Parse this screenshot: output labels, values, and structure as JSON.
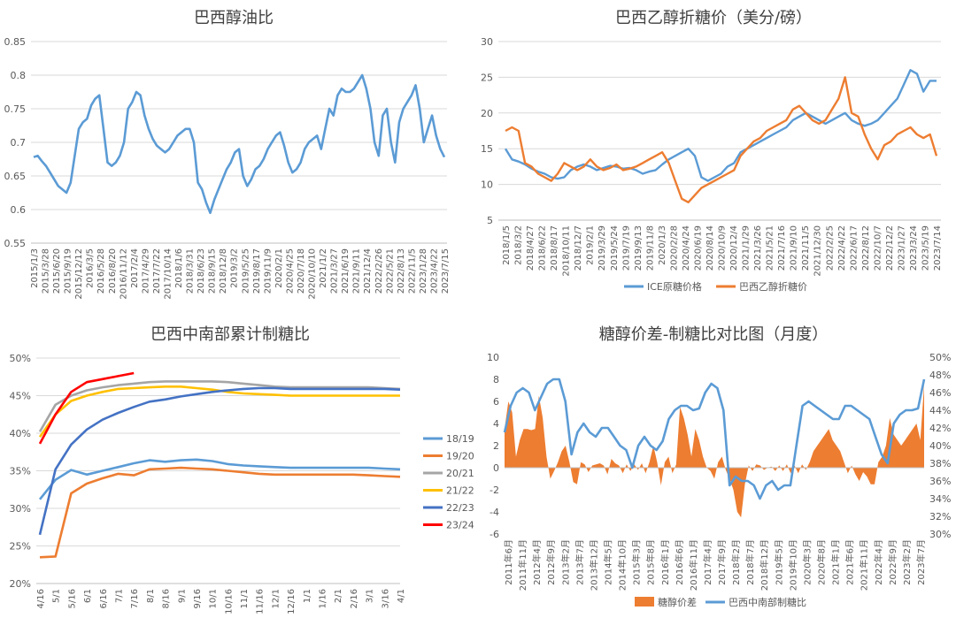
{
  "chart_data": [
    {
      "type": "line",
      "title": "巴西醇油比",
      "ylim": [
        0.55,
        0.85
      ],
      "yticks": [
        "0.55",
        "0.6",
        "0.65",
        "0.7",
        "0.75",
        "0.8",
        "0.85"
      ],
      "xticks": [
        "2015/1/3",
        "2015/3/28",
        "2015/6/20",
        "2015/9/19",
        "2015/12/12",
        "2016/3/5",
        "2016/5/28",
        "2016/8/20",
        "2016/11/12",
        "2017/2/4",
        "2017/4/29",
        "2017/7/22",
        "2017/10/14",
        "2018/1/6",
        "2018/3/31",
        "2018/6/23",
        "2018/9/15",
        "2018/12/8",
        "2019/3/2",
        "2019/5/25",
        "2019/8/17",
        "2019/11/9",
        "2020/2/1",
        "2020/4/25",
        "2020/7/18",
        "2020/10/10",
        "2021/1/2",
        "2021/3/27",
        "2021/6/19",
        "2021/9/11",
        "2021/12/4",
        "2022/2/26",
        "2022/5/21",
        "2022/8/13",
        "2022/11/5",
        "2023/1/28",
        "2023/4/22",
        "2023/7/15"
      ],
      "color": "#5b9bd5",
      "series": [
        {
          "values": [
            0.678,
            0.68,
            0.672,
            0.665,
            0.655,
            0.645,
            0.635,
            0.63,
            0.625,
            0.64,
            0.68,
            0.72,
            0.73,
            0.735,
            0.755,
            0.765,
            0.77,
            0.72,
            0.67,
            0.665,
            0.67,
            0.68,
            0.7,
            0.75,
            0.76,
            0.775,
            0.77,
            0.74,
            0.72,
            0.705,
            0.695,
            0.69,
            0.685,
            0.69,
            0.7,
            0.71,
            0.715,
            0.72,
            0.72,
            0.7,
            0.64,
            0.63,
            0.61,
            0.595,
            0.615,
            0.63,
            0.645,
            0.66,
            0.67,
            0.685,
            0.69,
            0.65,
            0.635,
            0.645,
            0.66,
            0.665,
            0.675,
            0.69,
            0.7,
            0.71,
            0.715,
            0.695,
            0.67,
            0.655,
            0.66,
            0.67,
            0.69,
            0.7,
            0.705,
            0.71,
            0.69,
            0.72,
            0.75,
            0.74,
            0.77,
            0.78,
            0.775,
            0.775,
            0.78,
            0.79,
            0.8,
            0.78,
            0.75,
            0.7,
            0.68,
            0.74,
            0.75,
            0.7,
            0.67,
            0.73,
            0.75,
            0.76,
            0.77,
            0.785,
            0.75,
            0.7,
            0.72,
            0.74,
            0.71,
            0.69,
            0.678
          ]
        }
      ]
    },
    {
      "type": "line",
      "title": "巴西乙醇折糖价（美分/磅）",
      "ylim": [
        5,
        30
      ],
      "yticks": [
        "5",
        "10",
        "15",
        "20",
        "25",
        "30"
      ],
      "xticks": [
        "2018/1/5",
        "2018/3/2",
        "2018/4/27",
        "2018/6/22",
        "2018/8/17",
        "2018/10/11",
        "2018/12/7",
        "2019/2/1",
        "2019/3/29",
        "2019/5/24",
        "2019/7/19",
        "2019/9/13",
        "2019/11/8",
        "2020/1/3",
        "2020/2/28",
        "2020/4/24",
        "2020/6/19",
        "2020/8/14",
        "2020/10/9",
        "2020/12/4",
        "2021/1/29",
        "2021/3/26",
        "2021/5/21",
        "2021/7/16",
        "2021/9/10",
        "2021/11/5",
        "2021/12/30",
        "2022/2/25",
        "2022/4/22",
        "2022/6/17",
        "2022/8/12",
        "2022/10/7",
        "2022/12/2",
        "2023/1/27",
        "2023/3/24",
        "2023/5/19",
        "2023/7/14"
      ],
      "series": [
        {
          "name": "ICE原糖价格",
          "color": "#5b9bd5",
          "values": [
            15,
            13.5,
            13.2,
            12.8,
            12.2,
            11.8,
            11.5,
            11.0,
            10.8,
            11.0,
            12.0,
            12.5,
            12.8,
            12.5,
            12.0,
            12.3,
            12.6,
            12.5,
            12.2,
            12.3,
            12.0,
            11.5,
            11.8,
            12.0,
            12.8,
            13.5,
            14.0,
            14.5,
            15.0,
            14.0,
            11.0,
            10.5,
            11.0,
            11.5,
            12.5,
            13.0,
            14.5,
            15.0,
            15.5,
            16.0,
            16.5,
            17.0,
            17.5,
            18.0,
            19.0,
            19.5,
            20.0,
            19.5,
            19.0,
            18.5,
            19.0,
            19.5,
            20.0,
            19.0,
            18.5,
            18.2,
            18.5,
            19.0,
            20.0,
            21.0,
            22.0,
            24.0,
            26.0,
            25.5,
            23.0,
            24.5,
            24.5
          ]
        },
        {
          "name": "巴西乙醇折糖价",
          "color": "#ed7d31",
          "values": [
            17.5,
            18.0,
            17.5,
            13.0,
            12.5,
            11.5,
            11.0,
            10.5,
            11.5,
            13.0,
            12.5,
            12.0,
            12.5,
            13.5,
            12.5,
            12.0,
            12.3,
            12.8,
            12.0,
            12.2,
            12.5,
            13.0,
            13.5,
            14.0,
            14.5,
            13.0,
            10.5,
            8.0,
            7.5,
            8.5,
            9.5,
            10.0,
            10.5,
            11.0,
            11.5,
            12.0,
            14.0,
            15.0,
            16.0,
            16.5,
            17.5,
            18.0,
            18.5,
            19.0,
            20.5,
            21.0,
            20.0,
            19.0,
            18.5,
            19.0,
            20.5,
            22.0,
            25.0,
            20.0,
            19.5,
            17.0,
            15.0,
            13.5,
            15.5,
            16.0,
            17.0,
            17.5,
            18.0,
            17.0,
            16.5,
            17.0,
            14.0
          ]
        }
      ]
    },
    {
      "type": "line",
      "title": "巴西中南部累计制糖比",
      "ylim": [
        20,
        50
      ],
      "yticks": [
        "20%",
        "25%",
        "30%",
        "35%",
        "40%",
        "45%",
        "50%"
      ],
      "xticks": [
        "4/16",
        "5/1",
        "5/16",
        "6/1",
        "6/16",
        "7/1",
        "7/16",
        "8/1",
        "8/16",
        "9/1",
        "9/16",
        "10/1",
        "10/16",
        "11/1",
        "11/16",
        "12/1",
        "12/16",
        "1/1",
        "1/16",
        "2/1",
        "2/16",
        "3/1",
        "3/16",
        "4/1"
      ],
      "series": [
        {
          "name": "18/19",
          "color": "#5b9bd5",
          "values": [
            31.2,
            33.8,
            35.1,
            34.5,
            35.0,
            35.5,
            36.0,
            36.4,
            36.2,
            36.4,
            36.5,
            36.3,
            35.9,
            35.7,
            35.6,
            35.5,
            35.4,
            35.4,
            35.4,
            35.4,
            35.4,
            35.4,
            35.3,
            35.2
          ]
        },
        {
          "name": "19/20",
          "color": "#ed7d31",
          "values": [
            23.5,
            23.6,
            32.0,
            33.3,
            34.0,
            34.6,
            34.4,
            35.2,
            35.3,
            35.4,
            35.3,
            35.2,
            35.0,
            34.8,
            34.6,
            34.5,
            34.5,
            34.5,
            34.5,
            34.5,
            34.5,
            34.4,
            34.3,
            34.2
          ]
        },
        {
          "name": "20/21",
          "color": "#a5a5a5",
          "values": [
            40.2,
            43.8,
            45.0,
            45.7,
            46.1,
            46.4,
            46.6,
            46.8,
            46.9,
            46.9,
            46.9,
            46.9,
            46.8,
            46.6,
            46.4,
            46.2,
            46.1,
            46.1,
            46.1,
            46.1,
            46.1,
            46.1,
            46.0,
            45.9
          ]
        },
        {
          "name": "21/22",
          "color": "#ffc000",
          "values": [
            39.5,
            42.5,
            44.3,
            45.0,
            45.5,
            45.9,
            46.0,
            46.1,
            46.2,
            46.2,
            46.0,
            45.8,
            45.5,
            45.3,
            45.2,
            45.1,
            45.0,
            45.0,
            45.0,
            45.0,
            45.0,
            45.0,
            45.0,
            45.0
          ]
        },
        {
          "name": "22/23",
          "color": "#4472c4",
          "values": [
            26.5,
            35.2,
            38.5,
            40.5,
            41.8,
            42.7,
            43.5,
            44.2,
            44.5,
            44.9,
            45.2,
            45.5,
            45.7,
            45.9,
            46.0,
            46.0,
            45.9,
            45.9,
            45.9,
            45.9,
            45.9,
            45.9,
            45.9,
            45.8
          ]
        },
        {
          "name": "23/24",
          "color": "#ff0000",
          "values": [
            38.6,
            42.5,
            45.5,
            46.8,
            47.2,
            47.6,
            48.0
          ]
        }
      ]
    },
    {
      "type": "bar+line",
      "title": "糖醇价差-制糖比对比图（月度）",
      "ylim_left": [
        -6,
        10
      ],
      "ylim_right": [
        30,
        50
      ],
      "yticks_left": [
        "-6",
        "-4",
        "-2",
        "0",
        "2",
        "4",
        "6",
        "8",
        "10"
      ],
      "yticks_right": [
        "30%",
        "32%",
        "34%",
        "36%",
        "38%",
        "40%",
        "42%",
        "44%",
        "46%",
        "48%",
        "50%"
      ],
      "xticks": [
        "2011年6月",
        "2011年11月",
        "2012年4月",
        "2012年9月",
        "2013年2月",
        "2013年7月",
        "2013年12月",
        "2014年5月",
        "2014年10月",
        "2015年3月",
        "2015年8月",
        "2016年1月",
        "2016年6月",
        "2016年11月",
        "2017年4月",
        "2017年9月",
        "2018年2月",
        "2018年7月",
        "2018年12月",
        "2019年5月",
        "2019年10月",
        "2020年3月",
        "2020年8月",
        "2021年1月",
        "2021年6月",
        "2021年11月",
        "2022年4月",
        "2022年9月",
        "2023年2月",
        "2023年7月"
      ],
      "series": [
        {
          "name": "糖醇价差",
          "color": "#ed7d31",
          "axis": "left",
          "values": [
            3.5,
            6.0,
            5.0,
            1.0,
            2.5,
            3.5,
            3.5,
            3.4,
            3.5,
            6.5,
            4.5,
            1.0,
            -1.0,
            -0.3,
            0.5,
            1.5,
            2.0,
            0.5,
            -1.3,
            -1.5,
            0.5,
            0.3,
            -0.4,
            0.2,
            0.3,
            0.4,
            0.2,
            -0.6,
            0.8,
            0.4,
            0.2,
            -0.5,
            0.3,
            -0.3,
            0.3,
            -0.2,
            0.4,
            -0.5,
            0.5,
            2.0,
            0.5,
            -1.6,
            0.5,
            1.0,
            -0.5,
            0.3,
            5.5,
            4.5,
            3.0,
            1.0,
            3.5,
            2.5,
            1.0,
            0.0,
            -0.3,
            -1.0,
            0.5,
            1.0,
            -0.2,
            -1.0,
            -2.0,
            -4.0,
            -4.5,
            -1.5,
            0.2,
            -0.3,
            0.3,
            0.2,
            -0.2,
            0.0,
            0.1,
            -0.3,
            0.2,
            -0.3,
            0.3,
            -0.5,
            0.2,
            -0.5,
            0.3,
            -0.2,
            0.5,
            1.5,
            2.0,
            2.5,
            3.0,
            3.5,
            2.5,
            2.0,
            1.5,
            0.5,
            -0.5,
            0.2,
            -0.6,
            -1.2,
            -0.4,
            -0.8,
            -1.5,
            -1.5,
            0.5,
            1.0,
            2.0,
            4.5,
            3.0,
            2.5,
            2.0,
            2.5,
            3.0,
            3.5,
            4.0,
            2.5,
            7.5
          ]
        },
        {
          "name": "巴西中南部制糖比",
          "color": "#5b9bd5",
          "axis": "right",
          "values": [
            41.5,
            44.5,
            46.0,
            46.5,
            46.0,
            44.0,
            45.5,
            47.0,
            47.5,
            47.5,
            45.0,
            39.0,
            41.5,
            42.5,
            41.5,
            41.0,
            42.0,
            42.0,
            41.0,
            40.0,
            39.5,
            37.5,
            40.0,
            41.0,
            40.0,
            39.5,
            40.5,
            43.0,
            44.0,
            44.5,
            44.5,
            44.0,
            44.2,
            46.0,
            47.0,
            46.5,
            44.0,
            35.5,
            36.5,
            36.0,
            36.0,
            35.5,
            34.0,
            35.5,
            36.0,
            35.0,
            35.5,
            35.5,
            40.0,
            44.5,
            45.0,
            44.5,
            44.0,
            43.5,
            43.0,
            43.0,
            44.5,
            44.5,
            44.0,
            43.5,
            43.0,
            41.0,
            39.0,
            38.0,
            42.5,
            43.5,
            44.0,
            44.0,
            44.2,
            47.5
          ]
        }
      ]
    }
  ]
}
